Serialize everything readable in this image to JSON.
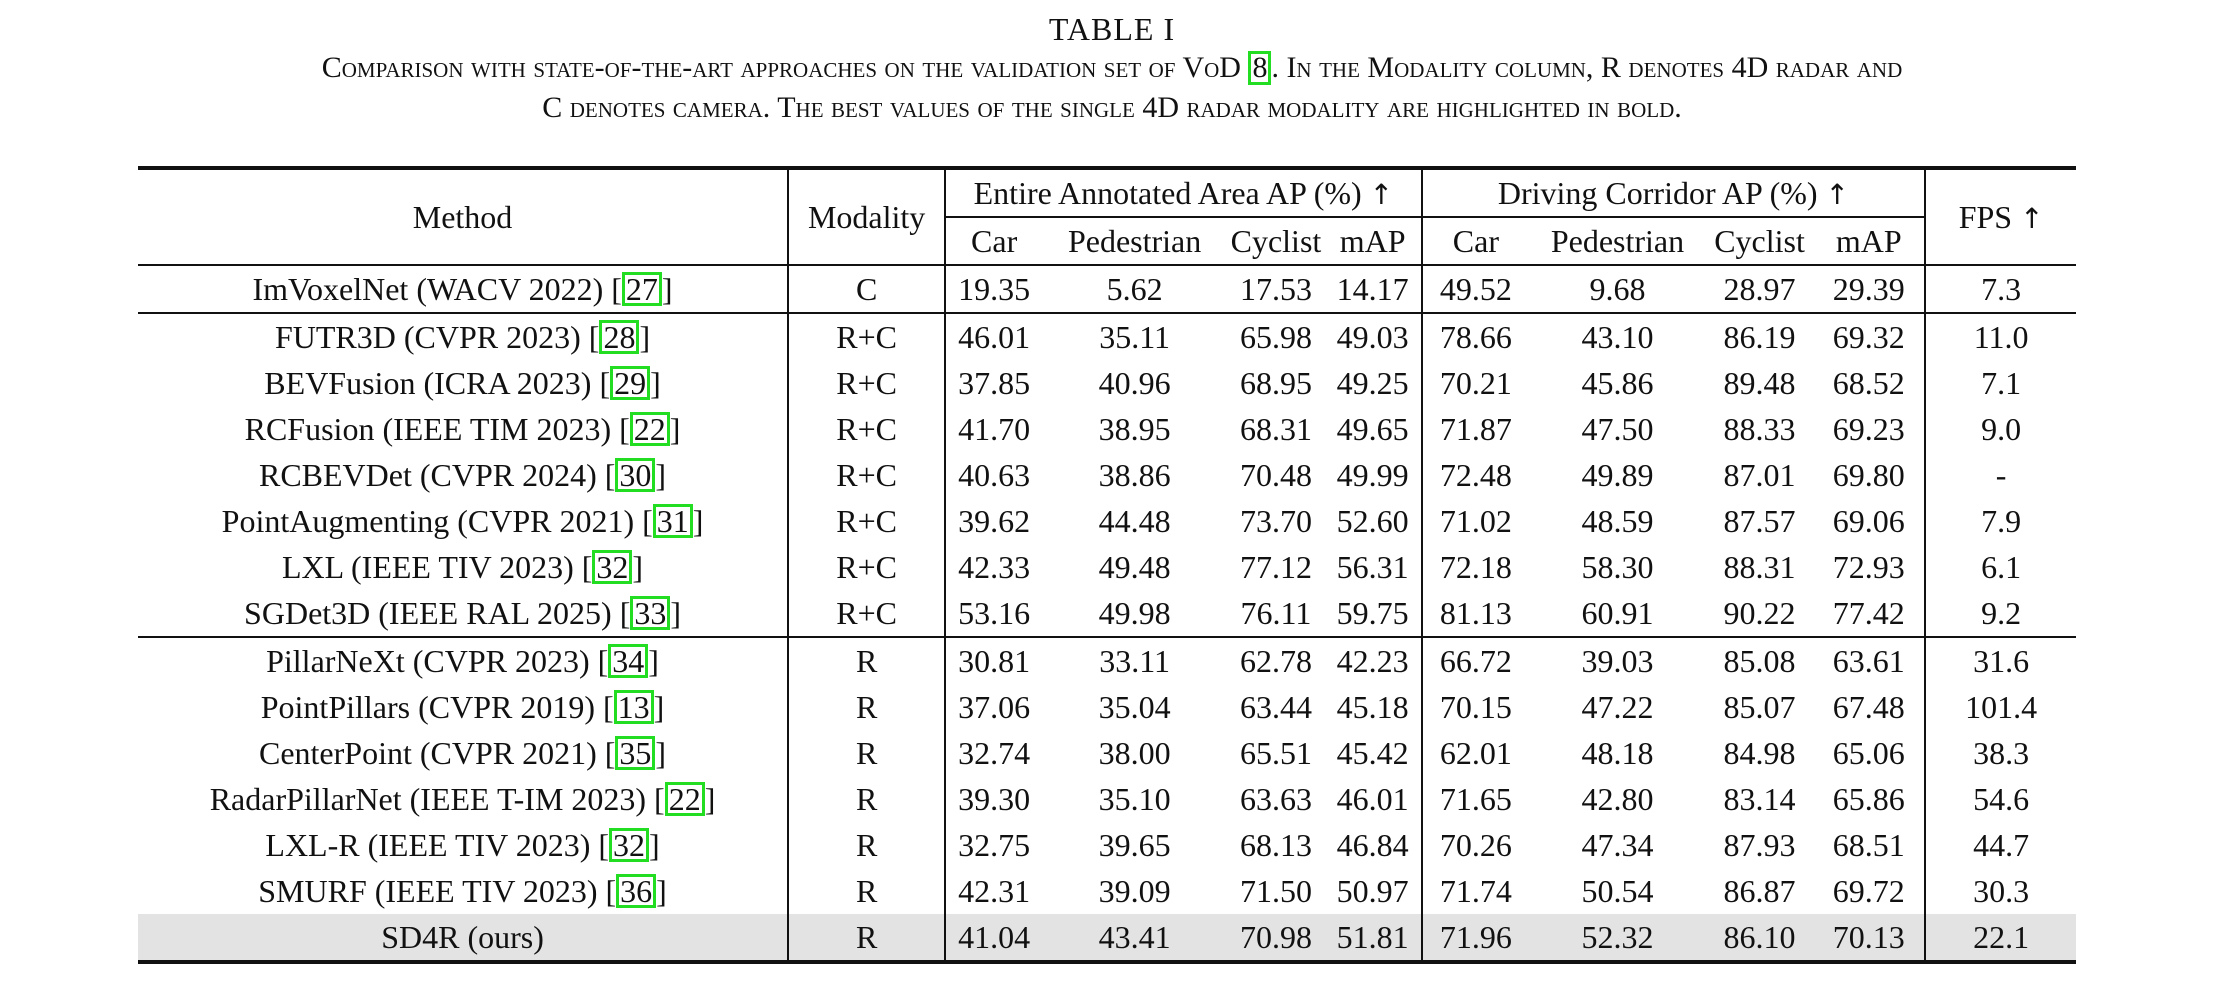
{
  "table_label": "TABLE I",
  "caption": {
    "line1_a": "Comparison with state-of-the-art approaches on the validation set of VoD ",
    "line1_cite": "8",
    "line1_b": ". In the Modality column, R denotes 4D radar and",
    "line2": "C denotes camera. The best values of the single 4D radar modality are highlighted in bold."
  },
  "header": {
    "method": "Method",
    "modality": "Modality",
    "group1": "Entire Annotated Area AP (%)",
    "group2": "Driving Corridor AP (%)",
    "fps": "FPS",
    "arrow": "↑",
    "cols": [
      "Car",
      "Pedestrian",
      "Cyclist",
      "mAP"
    ]
  },
  "rows": [
    {
      "method": "ImVoxelNet (WACV 2022) [",
      "cite": "27",
      "modality": "C",
      "values": [
        "19.35",
        "5.62",
        "17.53",
        "14.17",
        "49.52",
        "9.68",
        "28.97",
        "29.39",
        "7.3"
      ]
    },
    {
      "method": "FUTR3D (CVPR 2023) [",
      "cite": "28",
      "modality": "R+C",
      "values": [
        "46.01",
        "35.11",
        "65.98",
        "49.03",
        "78.66",
        "43.10",
        "86.19",
        "69.32",
        "11.0"
      ]
    },
    {
      "method": "BEVFusion (ICRA 2023) [",
      "cite": "29",
      "modality": "R+C",
      "values": [
        "37.85",
        "40.96",
        "68.95",
        "49.25",
        "70.21",
        "45.86",
        "89.48",
        "68.52",
        "7.1"
      ]
    },
    {
      "method": "RCFusion (IEEE TIM 2023) [",
      "cite": "22",
      "modality": "R+C",
      "values": [
        "41.70",
        "38.95",
        "68.31",
        "49.65",
        "71.87",
        "47.50",
        "88.33",
        "69.23",
        "9.0"
      ]
    },
    {
      "method": "RCBEVDet (CVPR 2024) [",
      "cite": "30",
      "modality": "R+C",
      "values": [
        "40.63",
        "38.86",
        "70.48",
        "49.99",
        "72.48",
        "49.89",
        "87.01",
        "69.80",
        "-"
      ]
    },
    {
      "method": "PointAugmenting (CVPR 2021) [",
      "cite": "31",
      "modality": "R+C",
      "values": [
        "39.62",
        "44.48",
        "73.70",
        "52.60",
        "71.02",
        "48.59",
        "87.57",
        "69.06",
        "7.9"
      ]
    },
    {
      "method": "LXL (IEEE TIV 2023) [",
      "cite": "32",
      "modality": "R+C",
      "values": [
        "42.33",
        "49.48",
        "77.12",
        "56.31",
        "72.18",
        "58.30",
        "88.31",
        "72.93",
        "6.1"
      ]
    },
    {
      "method": "SGDet3D (IEEE RAL 2025) [",
      "cite": "33",
      "modality": "R+C",
      "values": [
        "53.16",
        "49.98",
        "76.11",
        "59.75",
        "81.13",
        "60.91",
        "90.22",
        "77.42",
        "9.2"
      ]
    },
    {
      "method": "PillarNeXt (CVPR 2023) [",
      "cite": "34",
      "modality": "R",
      "values": [
        "30.81",
        "33.11",
        "62.78",
        "42.23",
        "66.72",
        "39.03",
        "85.08",
        "63.61",
        "31.6"
      ]
    },
    {
      "method": "PointPillars (CVPR 2019) [",
      "cite": "13",
      "modality": "R",
      "values": [
        "37.06",
        "35.04",
        "63.44",
        "45.18",
        "70.15",
        "47.22",
        "85.07",
        "67.48",
        "101.4"
      ]
    },
    {
      "method": "CenterPoint (CVPR 2021) [",
      "cite": "35",
      "modality": "R",
      "values": [
        "32.74",
        "38.00",
        "65.51",
        "45.42",
        "62.01",
        "48.18",
        "84.98",
        "65.06",
        "38.3"
      ]
    },
    {
      "method": "RadarPillarNet (IEEE T-IM 2023) [",
      "cite": "22",
      "modality": "R",
      "values": [
        "39.30",
        "35.10",
        "63.63",
        "46.01",
        "71.65",
        "42.80",
        "83.14",
        "65.86",
        "54.6"
      ]
    },
    {
      "method": "LXL-R (IEEE TIV 2023) [",
      "cite": "32",
      "modality": "R",
      "values": [
        "32.75",
        "39.65",
        "68.13",
        "46.84",
        "70.26",
        "47.34",
        "87.93",
        "68.51",
        "44.7"
      ]
    },
    {
      "method": "SMURF (IEEE TIV 2023) [",
      "cite": "36",
      "modality": "R",
      "values": [
        "42.31",
        "39.09",
        "71.50",
        "50.97",
        "71.74",
        "50.54",
        "86.87",
        "69.72",
        "30.3"
      ]
    },
    {
      "method": "SD4R (ours)",
      "cite": "",
      "modality": "R",
      "values": [
        "41.04",
        "43.41",
        "70.98",
        "51.81",
        "71.96",
        "52.32",
        "86.10",
        "70.13",
        "22.1"
      ]
    }
  ],
  "bold_cells": {
    "9": [
      8
    ],
    "12": [
      6
    ],
    "13": [
      0,
      2
    ],
    "14": [
      1,
      3,
      4,
      5,
      7
    ]
  },
  "highlight_row": 14,
  "separator_rows": [
    1,
    8
  ]
}
